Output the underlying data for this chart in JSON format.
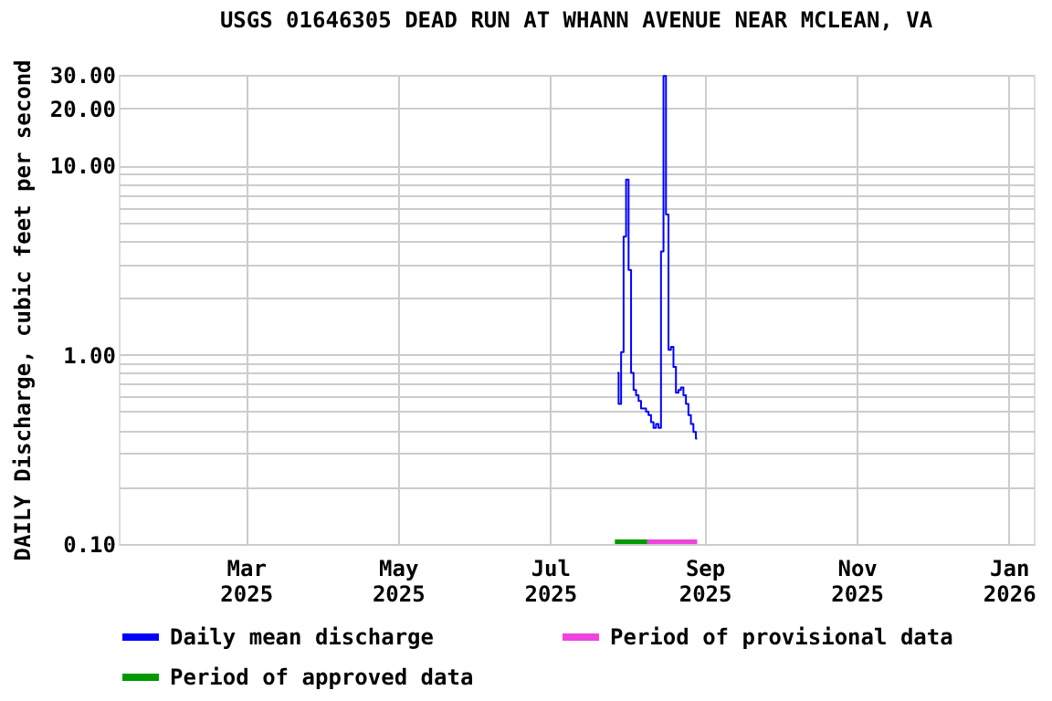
{
  "chart_data": {
    "type": "step",
    "title": "USGS 01646305 DEAD RUN AT WHANN AVENUE NEAR MCLEAN, VA",
    "ylabel": "DAILY Discharge, cubic feet per second",
    "log": true,
    "grid": true,
    "legend": "bottom",
    "xlim": [
      "2025-01-09",
      "2026-01-11"
    ],
    "xticks": [
      {
        "value": "2025-03-01",
        "label": "Mar 2025"
      },
      {
        "value": "2025-05-01",
        "label": "May 2025"
      },
      {
        "value": "2025-07-01",
        "label": "Jul 2025"
      },
      {
        "value": "2025-09-01",
        "label": "Sep 2025"
      },
      {
        "value": "2025-11-01",
        "label": "Nov 2025"
      },
      {
        "value": "2026-01-01",
        "label": "Jan 2026"
      }
    ],
    "ylim": [
      0.1,
      30
    ],
    "yticks": [
      {
        "value": 0.1,
        "label": "0.10"
      },
      {
        "value": 0.2,
        "label": null
      },
      {
        "value": 0.3,
        "label": null
      },
      {
        "value": 0.4,
        "label": null
      },
      {
        "value": 0.5,
        "label": null
      },
      {
        "value": 0.6,
        "label": null
      },
      {
        "value": 0.7,
        "label": null
      },
      {
        "value": 0.8,
        "label": null
      },
      {
        "value": 0.9,
        "label": null
      },
      {
        "value": 1,
        "label": "1.00"
      },
      {
        "value": 2,
        "label": null
      },
      {
        "value": 3,
        "label": null
      },
      {
        "value": 4,
        "label": null
      },
      {
        "value": 5,
        "label": null
      },
      {
        "value": 6,
        "label": null
      },
      {
        "value": 7,
        "label": null
      },
      {
        "value": 8,
        "label": null
      },
      {
        "value": 9,
        "label": null
      },
      {
        "value": 10,
        "label": "10.00"
      },
      {
        "value": 20,
        "label": "20.00"
      },
      {
        "value": 30,
        "label": "30.00"
      }
    ],
    "series": [
      {
        "name": "Daily mean discharge",
        "color": "#0000ff",
        "x": [
          "2025-07-28",
          "2025-07-29",
          "2025-07-30",
          "2025-07-31",
          "2025-08-01",
          "2025-08-02",
          "2025-08-03",
          "2025-08-04",
          "2025-08-05",
          "2025-08-06",
          "2025-08-07",
          "2025-08-08",
          "2025-08-09",
          "2025-08-10",
          "2025-08-11",
          "2025-08-12",
          "2025-08-13",
          "2025-08-14",
          "2025-08-15",
          "2025-08-16",
          "2025-08-17",
          "2025-08-18",
          "2025-08-19",
          "2025-08-20",
          "2025-08-21",
          "2025-08-22",
          "2025-08-23",
          "2025-08-24",
          "2025-08-25",
          "2025-08-26",
          "2025-08-27",
          "2025-08-28",
          "2025-08-29"
        ],
        "values": [
          0.8,
          0.55,
          1.03,
          4.2,
          8.4,
          2.8,
          0.8,
          0.65,
          0.61,
          0.57,
          0.52,
          0.52,
          0.5,
          0.48,
          0.44,
          0.41,
          0.43,
          0.41,
          3.5,
          29.6,
          5.5,
          1.06,
          1.1,
          0.86,
          0.63,
          0.65,
          0.67,
          0.61,
          0.55,
          0.48,
          0.43,
          0.39,
          0.36
        ]
      },
      {
        "name": "Period of provisional data",
        "type": "line",
        "color": "#ee44dd",
        "x": [
          "2025-08-09",
          "2025-08-29"
        ],
        "values": [
          0.1,
          0.1
        ]
      },
      {
        "name": "Period of approved data",
        "type": "line",
        "color": "#009900",
        "x": [
          "2025-07-27",
          "2025-08-09"
        ],
        "values": [
          0.1,
          0.1
        ]
      }
    ]
  }
}
